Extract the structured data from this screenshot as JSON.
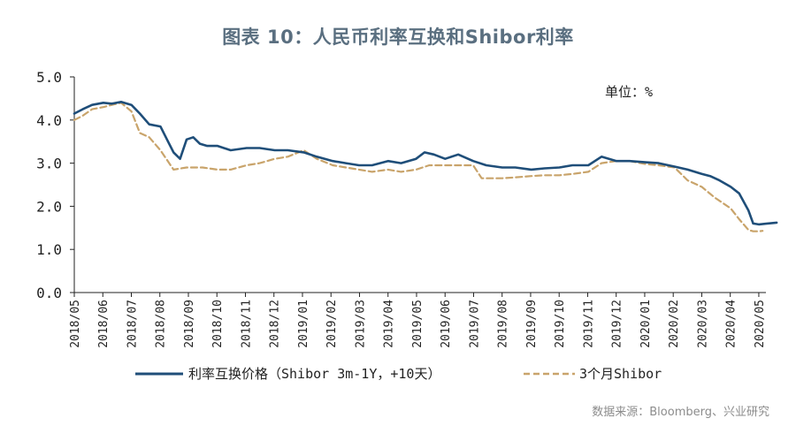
{
  "title": "图表 10：人民币利率互换和Shibor利率",
  "source": "数据来源：Bloomberg、兴业研究",
  "chart_data": {
    "type": "line",
    "unit_label": "单位：%",
    "ylim": [
      0.0,
      5.0
    ],
    "y_ticks": [
      "0.0",
      "1.0",
      "2.0",
      "3.0",
      "4.0",
      "5.0"
    ],
    "x_ticks": [
      "2018/05",
      "2018/06",
      "2018/07",
      "2018/08",
      "2018/09",
      "2018/10",
      "2018/11",
      "2018/12",
      "2019/01",
      "2019/02",
      "2019/03",
      "2019/04",
      "2019/05",
      "2019/06",
      "2019/07",
      "2019/08",
      "2019/09",
      "2019/10",
      "2019/11",
      "2019/12",
      "2020/01",
      "2020/02",
      "2020/03",
      "2020/04",
      "2020/05"
    ],
    "grid": false,
    "legend_position": "bottom",
    "series": [
      {
        "name": "利率互换价格（Shibor 3m-1Y，+10天）",
        "color": "#1f4e79",
        "dash": "solid",
        "x": [
          "2018/05/01",
          "2018/05/10",
          "2018/05/20",
          "2018/06/01",
          "2018/06/10",
          "2018/06/20",
          "2018/07/01",
          "2018/07/10",
          "2018/07/20",
          "2018/08/01",
          "2018/08/08",
          "2018/08/15",
          "2018/08/22",
          "2018/08/29",
          "2018/09/05",
          "2018/09/12",
          "2018/09/20",
          "2018/10/01",
          "2018/10/15",
          "2018/11/01",
          "2018/11/15",
          "2018/12/01",
          "2018/12/15",
          "2019/01/01",
          "2019/01/15",
          "2019/02/01",
          "2019/02/15",
          "2019/03/01",
          "2019/03/15",
          "2019/04/01",
          "2019/04/15",
          "2019/05/01",
          "2019/05/10",
          "2019/05/20",
          "2019/06/01",
          "2019/06/15",
          "2019/07/01",
          "2019/07/15",
          "2019/08/01",
          "2019/08/15",
          "2019/09/01",
          "2019/09/15",
          "2019/10/01",
          "2019/10/15",
          "2019/11/01",
          "2019/11/15",
          "2019/12/01",
          "2019/12/15",
          "2020/01/01",
          "2020/01/15",
          "2020/02/01",
          "2020/02/15",
          "2020/03/01",
          "2020/03/10",
          "2020/03/20",
          "2020/04/01",
          "2020/04/10",
          "2020/04/15",
          "2020/04/20",
          "2020/04/25",
          "2020/05/01",
          "2020/05/10",
          "2020/05/20"
        ],
        "y": [
          4.15,
          4.25,
          4.35,
          4.4,
          4.38,
          4.42,
          4.35,
          4.15,
          3.9,
          3.85,
          3.55,
          3.25,
          3.1,
          3.55,
          3.6,
          3.45,
          3.4,
          3.4,
          3.3,
          3.35,
          3.35,
          3.3,
          3.3,
          3.25,
          3.15,
          3.05,
          3.0,
          2.95,
          2.95,
          3.05,
          3.0,
          3.1,
          3.25,
          3.2,
          3.1,
          3.2,
          3.05,
          2.95,
          2.9,
          2.9,
          2.85,
          2.88,
          2.9,
          2.95,
          2.95,
          3.15,
          3.05,
          3.05,
          3.02,
          3.0,
          2.92,
          2.85,
          2.75,
          2.7,
          2.6,
          2.45,
          2.3,
          2.1,
          1.9,
          1.6,
          1.58,
          1.6,
          1.62
        ]
      },
      {
        "name": "3个月Shibor",
        "color": "#c9a46b",
        "dash": "dashed",
        "x": [
          "2018/05/01",
          "2018/05/10",
          "2018/05/20",
          "2018/06/01",
          "2018/06/10",
          "2018/06/20",
          "2018/07/01",
          "2018/07/10",
          "2018/07/20",
          "2018/08/01",
          "2018/08/15",
          "2018/08/29",
          "2018/09/15",
          "2018/10/01",
          "2018/10/15",
          "2018/11/01",
          "2018/11/15",
          "2018/12/01",
          "2018/12/15",
          "2019/01/01",
          "2019/01/15",
          "2019/02/01",
          "2019/02/15",
          "2019/03/01",
          "2019/03/15",
          "2019/04/01",
          "2019/04/15",
          "2019/05/01",
          "2019/05/15",
          "2019/06/01",
          "2019/06/15",
          "2019/07/01",
          "2019/07/10",
          "2019/08/01",
          "2019/08/15",
          "2019/09/01",
          "2019/09/15",
          "2019/10/01",
          "2019/10/15",
          "2019/11/01",
          "2019/11/15",
          "2019/12/01",
          "2019/12/15",
          "2020/01/01",
          "2020/01/15",
          "2020/02/01",
          "2020/02/15",
          "2020/03/01",
          "2020/03/15",
          "2020/04/01",
          "2020/04/10",
          "2020/04/20",
          "2020/04/25",
          "2020/05/01",
          "2020/05/05"
        ],
        "y": [
          4.0,
          4.1,
          4.25,
          4.3,
          4.35,
          4.4,
          4.2,
          3.7,
          3.6,
          3.3,
          2.85,
          2.9,
          2.9,
          2.85,
          2.85,
          2.95,
          3.0,
          3.1,
          3.15,
          3.3,
          3.1,
          2.95,
          2.9,
          2.85,
          2.8,
          2.85,
          2.8,
          2.85,
          2.95,
          2.95,
          2.95,
          2.95,
          2.65,
          2.65,
          2.67,
          2.7,
          2.72,
          2.72,
          2.75,
          2.8,
          3.0,
          3.05,
          3.05,
          2.98,
          2.95,
          2.9,
          2.6,
          2.45,
          2.2,
          1.95,
          1.7,
          1.45,
          1.42,
          1.42,
          1.43
        ]
      }
    ]
  }
}
